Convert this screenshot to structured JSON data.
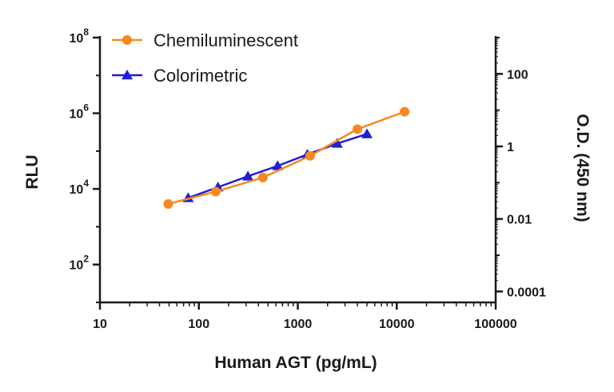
{
  "chart_data": {
    "type": "line",
    "xlabel": "Human AGT (pg/mL)",
    "ylabel": "RLU",
    "y2label": "O.D. (450 nm)",
    "x_scale": "log",
    "y_scale": "log",
    "y2_scale": "log",
    "xlim": [
      10,
      100000
    ],
    "ylim": [
      10,
      100000000
    ],
    "y2lim": [
      5e-05,
      1000
    ],
    "x_ticks": [
      {
        "value": 10,
        "label": "10"
      },
      {
        "value": 100,
        "label": "100"
      },
      {
        "value": 1000,
        "label": "1000"
      },
      {
        "value": 10000,
        "label": "10000"
      },
      {
        "value": 100000,
        "label": "100000"
      }
    ],
    "y_ticks": [
      {
        "value": 100,
        "base": "10",
        "exp": "2"
      },
      {
        "value": 10000,
        "base": "10",
        "exp": "4"
      },
      {
        "value": 1000000,
        "base": "10",
        "exp": "6"
      },
      {
        "value": 100000000,
        "base": "10",
        "exp": "8"
      }
    ],
    "y2_ticks": [
      {
        "value": 0.0001,
        "label": "0.0001"
      },
      {
        "value": 0.01,
        "label": "0.01"
      },
      {
        "value": 1,
        "label": "1"
      },
      {
        "value": 100,
        "label": "100"
      }
    ],
    "grid": false,
    "legend": "top-left",
    "series": [
      {
        "name": "Chemiluminescent",
        "axis": "left",
        "marker": "circle",
        "color": "#f5891f",
        "x": [
          49,
          148,
          444,
          1333,
          4000,
          12000
        ],
        "y": [
          4000,
          8500,
          20000,
          75000,
          380000,
          1100000
        ]
      },
      {
        "name": "Colorimetric",
        "axis": "right",
        "marker": "triangle",
        "color": "#1f1fd6",
        "x": [
          78,
          156,
          313,
          625,
          1250,
          2500,
          5000
        ],
        "y": [
          0.038,
          0.075,
          0.15,
          0.29,
          0.6,
          1.2,
          2.2
        ]
      }
    ]
  }
}
